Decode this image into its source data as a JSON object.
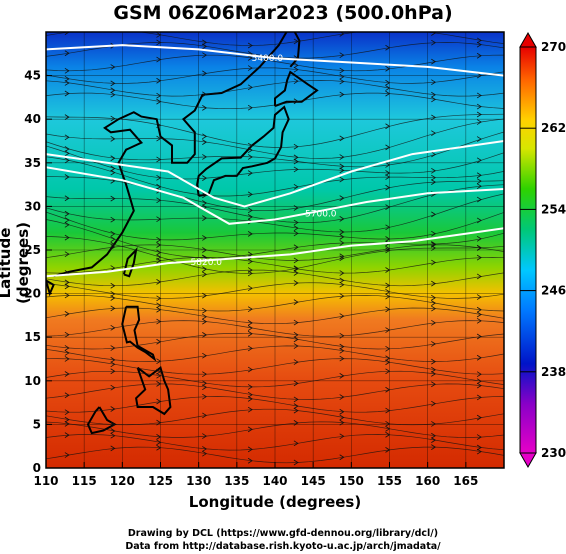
{
  "title": "GSM 06Z06Mar2023 (500.0hPa)",
  "xlabel": "Longitude (degrees)",
  "ylabel": "Latitude (degrees)",
  "credit_line1": "Drawing by DCL (https://www.gfd-dennou.org/library/dcl/)",
  "credit_line2": "Data from http://database.rish.kyoto-u.ac.jp/arch/jmadata/",
  "chart_data": {
    "type": "heatmap",
    "title": "GSM 06Z06Mar2023 (500.0hPa)",
    "xlabel": "Longitude (degrees)",
    "ylabel": "Latitude (degrees)",
    "xlim": [
      110,
      170
    ],
    "ylim": [
      0,
      50
    ],
    "x_ticks": [
      "110",
      "115",
      "120",
      "125",
      "130",
      "135",
      "140",
      "145",
      "150",
      "155",
      "160",
      "165"
    ],
    "y_ticks": [
      "0",
      "5",
      "10",
      "15",
      "20",
      "25",
      "30",
      "35",
      "40",
      "45"
    ],
    "colorbar": {
      "range": [
        230,
        270
      ],
      "ticks": [
        "230",
        "238",
        "246",
        "254",
        "262",
        "270"
      ],
      "colors": [
        "#dd00dd",
        "#0000cc",
        "#0099ff",
        "#00cccc",
        "#00cc33",
        "#99dd00",
        "#ffee00",
        "#ff9900",
        "#ff3300",
        "#cc0000"
      ]
    },
    "temperature_profile": [
      {
        "lat": 0,
        "value": 268
      },
      {
        "lat": 10,
        "value": 267
      },
      {
        "lat": 18,
        "value": 265
      },
      {
        "lat": 22,
        "value": 261
      },
      {
        "lat": 25,
        "value": 257
      },
      {
        "lat": 28,
        "value": 254
      },
      {
        "lat": 32,
        "value": 251
      },
      {
        "lat": 36,
        "value": 248
      },
      {
        "lat": 42,
        "value": 246
      },
      {
        "lat": 46,
        "value": 243
      },
      {
        "lat": 50,
        "value": 239
      }
    ],
    "contour_labels": [
      "5400.0",
      "5700.0",
      "5820.0"
    ],
    "grid": true,
    "overlay": "wind streamlines and coastlines"
  }
}
